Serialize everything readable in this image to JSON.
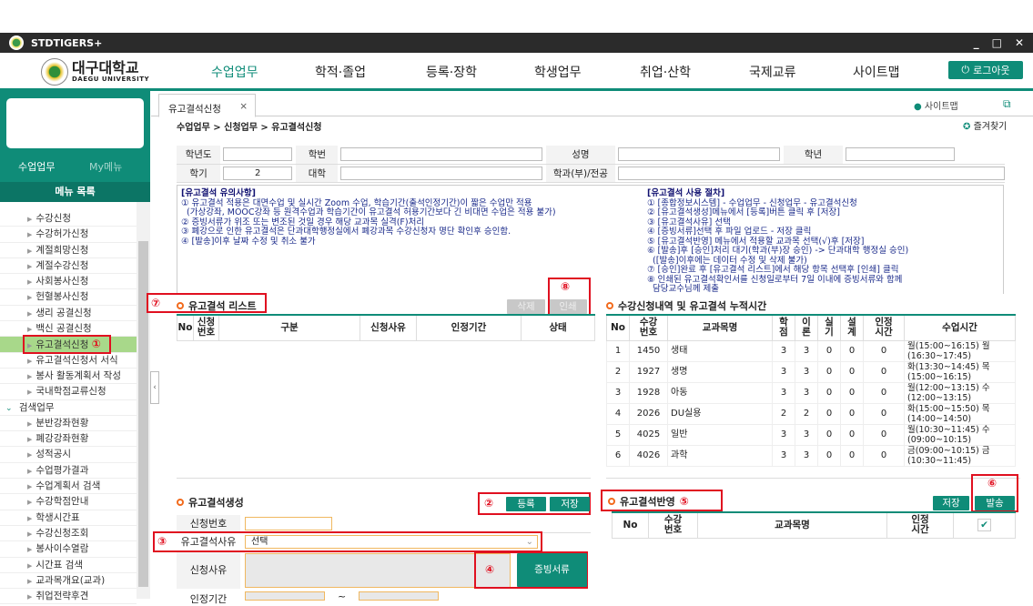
{
  "window": {
    "title": "STDTIGERS+",
    "controls": [
      "_",
      "□",
      "✕"
    ]
  },
  "header": {
    "brand_ko": "대구대학교",
    "brand_en": "DAEGU UNIVERSITY",
    "nav": [
      "수업업무",
      "학적·졸업",
      "등록·장학",
      "학생업무",
      "취업·산학",
      "국제교류",
      "사이트맵"
    ],
    "active_nav": "수업업무",
    "logout": "로그아웃",
    "accent": "#0f8c78"
  },
  "sidebar": {
    "tabs": [
      "수업업무",
      "My메뉴"
    ],
    "menu_title": "메뉴 목록",
    "items": [
      "수강신청",
      "수강허가신청",
      "계절희망신청",
      "계절수강신청",
      "사회봉사신청",
      "헌혈봉사신청",
      "생리 공결신청",
      "백신 공결신청",
      "유고결석신청",
      "유고결석신청서 서식",
      "봉사 활동계획서 작성",
      "국내학점교류신청"
    ],
    "active_item": "유고결석신청",
    "group": "검색업무",
    "group_items": [
      "분반강좌현황",
      "폐강강좌현황",
      "성적공시",
      "수업평가결과",
      "수업계획서 검색",
      "수강학점안내",
      "학생시간표",
      "수강신청조회",
      "봉사이수열람",
      "시간표 검색",
      "교과목개요(교과)",
      "취업전략후견"
    ]
  },
  "tab": {
    "label": "유고결석신청",
    "close": "×"
  },
  "sitemap": "사이트맵",
  "breadcrumb": "수업업무 > 신청업무 > 유고결석신청",
  "favorite": "즐겨찾기",
  "student_form": {
    "labels": [
      "학년도",
      "학번",
      "성명",
      "학년",
      "학기",
      "대학",
      "학과(부)/전공"
    ],
    "semester_value": "2"
  },
  "notice": {
    "left_title": "[유고결석 유의사항]",
    "left_lines": [
      "① 유고결석 적용은 대면수업 및 실시간 Zoom 수업, 학습기간(출석인정기간)이 짧은 수업만 적용",
      "  (가상강좌, MOOC강좌 등 원격수업과 학습기간이 유고결석 허용기간보다 긴 비대면 수업은 적용 불가)",
      "② 증빙서류가 위조 또는 변조된 것일 경우 해당 교과목 실격(F)처리",
      "③ 폐강으로 인한 유고결석은 단과대학행정실에서 폐강과목 수강신청자 명단 확인후 승인함.",
      "④ [발송]이후 날짜 수정 및 취소 불가"
    ],
    "right_title": "[유고결석 사용 절차]",
    "right_lines": [
      "① [종합정보시스템] - 수업업무 - 신청업무 - 유고결석신청",
      "② [유고결석생성]메뉴에서 [등록]버튼 클릭 후 [저장]",
      "③ [유고결석사유] 선택",
      "④ [증빙서류]선택 후 파일 업로드 - 저장 클릭",
      "⑤ [유고결석반영] 메뉴에서 적용할 교과목 선택(√)후 [저장]",
      "⑥ [발송]후 [승인]처리 대기(학과(부)장 승인) -> 단과대학 행정실 승인)",
      "  ([발송]이후에는 데이터 수정 및 삭제 불가)",
      "⑦ [승인]완료 후 [유고결석 리스트]에서 해당 항목 선택후 [인쇄] 클릭",
      "⑧ 인쇄된 유고결석확인서를 신청일로부터 7일 이내에 증빙서류와 함께",
      "  담당교수님께 제출"
    ]
  },
  "absence_list": {
    "title": "유고결석 리스트",
    "delete": "삭제",
    "print": "인쇄",
    "columns": [
      "No",
      "신청\n번호",
      "구분",
      "신청사유",
      "인정기간",
      "상태"
    ]
  },
  "course_list": {
    "title": "수강신청내역 및 유고결석 누적시간",
    "columns": [
      "No",
      "수강\n번호",
      "교과목명",
      "학\n점",
      "이\n론",
      "실\n기",
      "설\n계",
      "인정\n시간",
      "수업시간"
    ],
    "rows": [
      [
        "1",
        "1450",
        "생태",
        "3",
        "3",
        "0",
        "0",
        "0",
        "월(15:00~16:15) 월(16:30~17:45)"
      ],
      [
        "2",
        "1927",
        "생명",
        "3",
        "3",
        "0",
        "0",
        "0",
        "화(13:30~14:45) 목(15:00~16:15)"
      ],
      [
        "3",
        "1928",
        "아동",
        "3",
        "3",
        "0",
        "0",
        "0",
        "월(12:00~13:15) 수(12:00~13:15)"
      ],
      [
        "4",
        "2026",
        "DU실용",
        "2",
        "2",
        "0",
        "0",
        "0",
        "화(15:00~15:50) 목(14:00~14:50)"
      ],
      [
        "5",
        "4025",
        "일반",
        "3",
        "3",
        "0",
        "0",
        "0",
        "월(10:30~11:45) 수(09:00~10:15)"
      ],
      [
        "6",
        "4026",
        "과학",
        "3",
        "3",
        "0",
        "0",
        "0",
        "금(09:00~10:15) 금(10:30~11:45)"
      ]
    ]
  },
  "create": {
    "title": "유고결석생성",
    "register": "등록",
    "save": "저장",
    "fields": {
      "request_no": "신청번호",
      "reason_type": "유고결석사유",
      "reason_type_value": "선택",
      "reason": "신청사유",
      "period": "인정기간",
      "period_sep": "~"
    },
    "evidence": "증빙서류"
  },
  "apply": {
    "title": "유고결석반영",
    "save": "저장",
    "send": "발송",
    "columns": [
      "No",
      "수강\n번호",
      "교과목명",
      "인정\n시간"
    ]
  },
  "callouts": [
    "①",
    "②",
    "③",
    "④",
    "⑤",
    "⑥",
    "⑦",
    "⑧"
  ]
}
